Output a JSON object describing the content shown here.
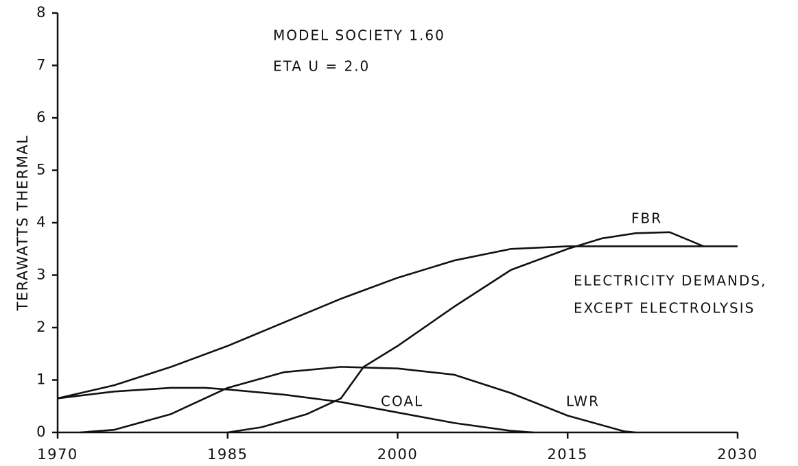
{
  "chart_data": {
    "type": "line",
    "ylabel": "TERAWATTS  THERMAL",
    "annotations": [
      "MODEL SOCIETY 1.60",
      "ETA U = 2.0",
      "FBR",
      "ELECTRICITY  DEMANDS,",
      "EXCEPT  ELECTROLYSIS",
      "COAL",
      "LWR"
    ],
    "series": [
      {
        "color": "#111111",
        "x": [
          1970,
          1975,
          1980,
          1985,
          1990,
          1995,
          2000,
          2005,
          2010,
          2015,
          2020,
          2025,
          2030
        ],
        "values": [
          0.65,
          0.9,
          1.25,
          1.65,
          2.1,
          2.55,
          2.95,
          3.28,
          3.5,
          3.55,
          3.55,
          3.55,
          3.55
        ]
      },
      {
        "color": "#111111",
        "x": [
          1970,
          1975,
          1980,
          1983,
          1985,
          1990,
          1995,
          2000,
          2005,
          2010,
          2012
        ],
        "values": [
          0.65,
          0.78,
          0.85,
          0.85,
          0.82,
          0.72,
          0.58,
          0.38,
          0.18,
          0.03,
          0
        ]
      },
      {
        "color": "#111111",
        "x": [
          1972,
          1975,
          1980,
          1985,
          1990,
          1995,
          2000,
          2005,
          2010,
          2015,
          2020,
          2021
        ],
        "values": [
          0,
          0.05,
          0.35,
          0.85,
          1.15,
          1.25,
          1.22,
          1.1,
          0.75,
          0.32,
          0.02,
          0
        ]
      },
      {
        "color": "#111111",
        "x": [
          1985,
          1988,
          1992,
          1995,
          1997,
          2000,
          2005,
          2010,
          2015,
          2018,
          2021,
          2024,
          2027
        ],
        "values": [
          0,
          0.1,
          0.35,
          0.65,
          1.25,
          1.65,
          2.4,
          3.1,
          3.5,
          3.7,
          3.8,
          3.82,
          3.55
        ]
      }
    ],
    "xlim": [
      1970,
      2030
    ],
    "xticks": [
      1970,
      1985,
      2000,
      2015,
      2030
    ],
    "ylim": [
      0,
      8
    ],
    "yticks": [
      0,
      1,
      2,
      3,
      4,
      5,
      6,
      7,
      8
    ]
  }
}
